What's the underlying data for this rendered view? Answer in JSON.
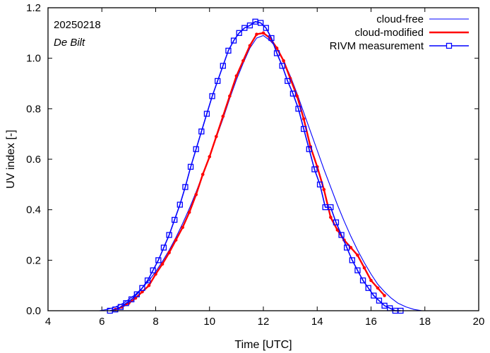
{
  "chart_data": {
    "type": "line",
    "title": "",
    "date_label": "20250218",
    "location_label": "De Bilt",
    "xlabel": "Time  [UTC]",
    "ylabel": "UV index  [-]",
    "xlim": [
      4,
      20
    ],
    "ylim": [
      0,
      1.2
    ],
    "xticks": [
      4,
      6,
      8,
      10,
      12,
      14,
      16,
      18,
      20
    ],
    "yticks": [
      0.0,
      0.2,
      0.4,
      0.6,
      0.8,
      1.0,
      1.2
    ],
    "xtick_labels": [
      "4",
      "6",
      "8",
      "10",
      "12",
      "14",
      "16",
      "18",
      "20"
    ],
    "ytick_labels": [
      "0.0",
      "0.2",
      "0.4",
      "0.6",
      "0.8",
      "1.0",
      "1.2"
    ],
    "legend_position": "top-right",
    "series": [
      {
        "name": "cloud-free",
        "color": "#0000ff",
        "style": "thin-line",
        "x": [
          5.9,
          6.2,
          6.5,
          6.8,
          7.0,
          7.25,
          7.5,
          7.75,
          8.0,
          8.25,
          8.5,
          8.75,
          9.0,
          9.25,
          9.5,
          9.75,
          10.0,
          10.25,
          10.5,
          10.75,
          11.0,
          11.25,
          11.5,
          11.75,
          12.0,
          12.25,
          12.5,
          12.75,
          13.0,
          13.25,
          13.5,
          13.75,
          14.0,
          14.25,
          14.5,
          14.75,
          15.0,
          15.25,
          15.5,
          15.75,
          16.0,
          16.25,
          16.5,
          16.75,
          17.0,
          17.3,
          17.6,
          17.9
        ],
        "values": [
          0.0,
          0.005,
          0.015,
          0.03,
          0.045,
          0.065,
          0.09,
          0.12,
          0.155,
          0.195,
          0.24,
          0.29,
          0.345,
          0.405,
          0.47,
          0.54,
          0.61,
          0.685,
          0.76,
          0.84,
          0.915,
          0.98,
          1.04,
          1.08,
          1.09,
          1.07,
          1.04,
          0.99,
          0.93,
          0.86,
          0.785,
          0.71,
          0.635,
          0.56,
          0.49,
          0.42,
          0.355,
          0.295,
          0.24,
          0.19,
          0.145,
          0.105,
          0.075,
          0.05,
          0.03,
          0.015,
          0.005,
          0.0
        ]
      },
      {
        "name": "cloud-modified",
        "color": "#ff0000",
        "style": "thick-line-dots",
        "x": [
          6.5,
          6.75,
          7.0,
          7.25,
          7.5,
          7.75,
          8.0,
          8.25,
          8.5,
          8.75,
          9.0,
          9.25,
          9.5,
          9.75,
          10.0,
          10.25,
          10.5,
          10.75,
          11.0,
          11.25,
          11.5,
          11.75,
          12.0,
          12.25,
          12.5,
          12.75,
          13.0,
          13.25,
          13.5,
          13.75,
          14.0,
          14.25,
          14.5,
          14.75,
          15.0,
          15.25,
          15.5,
          15.75,
          16.0,
          16.25,
          16.5
        ],
        "values": [
          0.005,
          0.015,
          0.03,
          0.05,
          0.075,
          0.1,
          0.145,
          0.185,
          0.23,
          0.28,
          0.33,
          0.39,
          0.46,
          0.54,
          0.61,
          0.69,
          0.77,
          0.85,
          0.93,
          0.99,
          1.05,
          1.095,
          1.1,
          1.08,
          1.04,
          0.99,
          0.92,
          0.85,
          0.76,
          0.65,
          0.57,
          0.48,
          0.37,
          0.32,
          0.28,
          0.25,
          0.22,
          0.17,
          0.12,
          0.09,
          0.06
        ]
      },
      {
        "name": "RIVM measurement",
        "color": "#0000ff",
        "style": "line-open-squares",
        "x": [
          6.3,
          6.5,
          6.7,
          6.9,
          7.1,
          7.3,
          7.5,
          7.7,
          7.9,
          8.1,
          8.3,
          8.5,
          8.7,
          8.9,
          9.1,
          9.3,
          9.5,
          9.7,
          9.9,
          10.1,
          10.3,
          10.5,
          10.7,
          10.9,
          11.1,
          11.3,
          11.5,
          11.7,
          11.9,
          12.1,
          12.3,
          12.5,
          12.7,
          12.9,
          13.1,
          13.3,
          13.5,
          13.7,
          13.9,
          14.1,
          14.3,
          14.5,
          14.7,
          14.9,
          15.1,
          15.3,
          15.5,
          15.7,
          15.9,
          16.1,
          16.3,
          16.5,
          16.7,
          16.9,
          17.1
        ],
        "values": [
          0.0,
          0.005,
          0.015,
          0.03,
          0.045,
          0.065,
          0.09,
          0.12,
          0.16,
          0.2,
          0.25,
          0.3,
          0.36,
          0.42,
          0.49,
          0.57,
          0.64,
          0.71,
          0.78,
          0.85,
          0.91,
          0.97,
          1.03,
          1.07,
          1.1,
          1.12,
          1.13,
          1.145,
          1.14,
          1.12,
          1.08,
          1.02,
          0.97,
          0.91,
          0.86,
          0.8,
          0.72,
          0.64,
          0.56,
          0.5,
          0.41,
          0.41,
          0.35,
          0.3,
          0.25,
          0.2,
          0.16,
          0.12,
          0.09,
          0.06,
          0.04,
          0.02,
          0.01,
          0.0,
          0.0
        ]
      }
    ]
  }
}
